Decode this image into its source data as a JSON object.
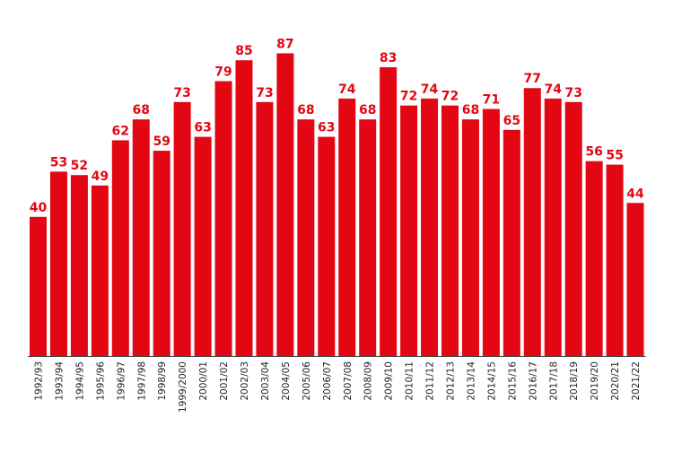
{
  "chart_data": {
    "type": "bar",
    "title": "",
    "xlabel": "",
    "ylabel": "",
    "ylim": [
      0,
      90
    ],
    "grid": false,
    "bar_color": "#e30613",
    "categories": [
      "1992/93",
      "1993/94",
      "1994/95",
      "1995/96",
      "1996/97",
      "1997/98",
      "1998/99",
      "1999/2000",
      "2000/01",
      "2001/02",
      "2002/03",
      "2003/04",
      "2004/05",
      "2005/06",
      "2006/07",
      "2007/08",
      "2008/09",
      "2009/10",
      "2010/11",
      "2011/12",
      "2012/13",
      "2013/14",
      "2014/15",
      "2015/16",
      "2016/17",
      "2017/18",
      "2018/19",
      "2019/20",
      "2020/21",
      "2021/22"
    ],
    "values": [
      40,
      53,
      52,
      49,
      62,
      68,
      59,
      73,
      63,
      79,
      85,
      73,
      87,
      68,
      63,
      74,
      68,
      83,
      72,
      74,
      72,
      68,
      71,
      65,
      77,
      74,
      73,
      56,
      55,
      44
    ]
  }
}
